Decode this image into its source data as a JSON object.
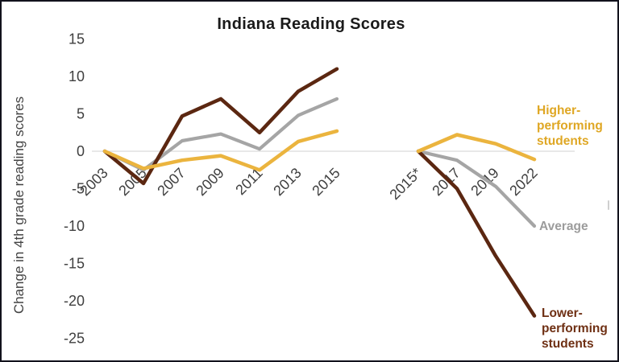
{
  "chart_data": {
    "type": "line",
    "title": "Indiana Reading Scores",
    "xlabel": "",
    "ylabel": "Change in 4th grade reading scores",
    "ylim": [
      -25,
      15
    ],
    "yticks": [
      15,
      10,
      5,
      0,
      -5,
      -10,
      -15,
      -20,
      -25
    ],
    "grid": "zero-baseline only",
    "legend_position": "inline labels at right edge of lines",
    "panels": [
      {
        "name": "pre-2015",
        "categories": [
          "2003",
          "2005",
          "2007",
          "2009",
          "2011",
          "2013",
          "2015"
        ],
        "series": [
          {
            "name": "Average",
            "color": "#A5A5A5",
            "values": [
              0,
              -2.5,
              1.4,
              2.3,
              0.3,
              4.8,
              7
            ]
          },
          {
            "name": "Lower-performing students",
            "color": "#5B2711",
            "values": [
              0,
              -4.3,
              4.7,
              7,
              2.5,
              8,
              11
            ]
          },
          {
            "name": "Higher-performing students",
            "color": "#EBB43E",
            "values": [
              0,
              -2.3,
              -1.2,
              -0.6,
              -2.5,
              1.3,
              2.7
            ]
          }
        ]
      },
      {
        "name": "post-2015",
        "categories": [
          "2015*",
          "2017",
          "2019",
          "2022"
        ],
        "series": [
          {
            "name": "Average",
            "color": "#A5A5A5",
            "values": [
              0,
              -1.2,
              -4.7,
              -10
            ]
          },
          {
            "name": "Lower-performing students",
            "color": "#5B2711",
            "values": [
              0,
              -5,
              -14,
              -22
            ]
          },
          {
            "name": "Higher-performing students",
            "color": "#EBB43E",
            "values": [
              0,
              2.2,
              1,
              -1.1
            ]
          }
        ]
      }
    ],
    "series_labels": [
      {
        "id": "higher",
        "text": "Higher-performing students",
        "color": "#DFA724"
      },
      {
        "id": "average",
        "text": "Average",
        "color": "#9C9C9C"
      },
      {
        "id": "lower",
        "text": "Lower-performing students",
        "color": "#6F3014"
      }
    ],
    "axis_text_color": "#3F3F3F",
    "gridline_color": "#D9D9D9",
    "title_color": "#1A1A1A",
    "background_color": "#FFFFFF",
    "border_color": "#12121C"
  }
}
